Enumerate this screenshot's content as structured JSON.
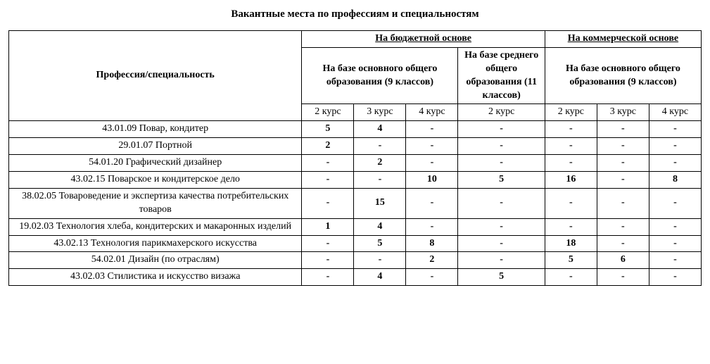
{
  "title": "Вакантные места по профессиям и специальностям",
  "headers": {
    "profession": "Профессия/специальность",
    "budget": "На бюджетной основе",
    "commercial": "На коммерческой основе",
    "base9": "На базе основного общего образования (9 классов)",
    "base11": "На базе среднего общего образования (11 классов)",
    "base9_comm": "На базе основного общего образования (9 классов)",
    "course2": "2 курс",
    "course3": "3 курс",
    "course4": "4 курс"
  },
  "rows": [
    {
      "name": "43.01.09 Повар, кондитер",
      "b9_c2": "5",
      "b9_c3": "4",
      "b9_c4": "-",
      "b11_c2": "-",
      "c9_c2": "-",
      "c9_c3": "-",
      "c9_c4": "-"
    },
    {
      "name": "29.01.07 Портной",
      "b9_c2": "2",
      "b9_c3": "-",
      "b9_c4": "-",
      "b11_c2": "-",
      "c9_c2": "-",
      "c9_c3": "-",
      "c9_c4": "-"
    },
    {
      "name": "54.01.20 Графический дизайнер",
      "b9_c2": "-",
      "b9_c3": "2",
      "b9_c4": "-",
      "b11_c2": "-",
      "c9_c2": "-",
      "c9_c3": "-",
      "c9_c4": "-"
    },
    {
      "name": "43.02.15 Поварское и кондитерское дело",
      "b9_c2": "-",
      "b9_c3": "-",
      "b9_c4": "10",
      "b11_c2": "5",
      "c9_c2": "16",
      "c9_c3": "-",
      "c9_c4": "8"
    },
    {
      "name": "38.02.05 Товароведение и экспертиза качества потребительских товаров",
      "b9_c2": "-",
      "b9_c3": "15",
      "b9_c4": "-",
      "b11_c2": "-",
      "c9_c2": "-",
      "c9_c3": "-",
      "c9_c4": "-"
    },
    {
      "name": "19.02.03 Технология хлеба, кондитерских и макаронных изделий",
      "b9_c2": "1",
      "b9_c3": "4",
      "b9_c4": "-",
      "b11_c2": "-",
      "c9_c2": "-",
      "c9_c3": "-",
      "c9_c4": "-"
    },
    {
      "name": "43.02.13 Технология парикмахерского искусства",
      "b9_c2": "-",
      "b9_c3": "5",
      "b9_c4": "8",
      "b11_c2": "-",
      "c9_c2": "18",
      "c9_c3": "-",
      "c9_c4": "-"
    },
    {
      "name": "54.02.01 Дизайн (по отраслям)",
      "b9_c2": "-",
      "b9_c3": "-",
      "b9_c4": "2",
      "b11_c2": "-",
      "c9_c2": "5",
      "c9_c3": "6",
      "c9_c4": "-"
    },
    {
      "name": "43.02.03 Стилистика и искусство визажа",
      "b9_c2": "-",
      "b9_c3": "4",
      "b9_c4": "-",
      "b11_c2": "5",
      "c9_c2": "-",
      "c9_c3": "-",
      "c9_c4": "-"
    }
  ],
  "style": {
    "font_family": "Times New Roman",
    "title_fontsize": 15,
    "body_fontsize": 14,
    "border_color": "#000000",
    "background_color": "#ffffff",
    "text_color": "#000000",
    "col_profession_width": 405,
    "col_narrow_width": 72,
    "col_wide_width": 120
  }
}
